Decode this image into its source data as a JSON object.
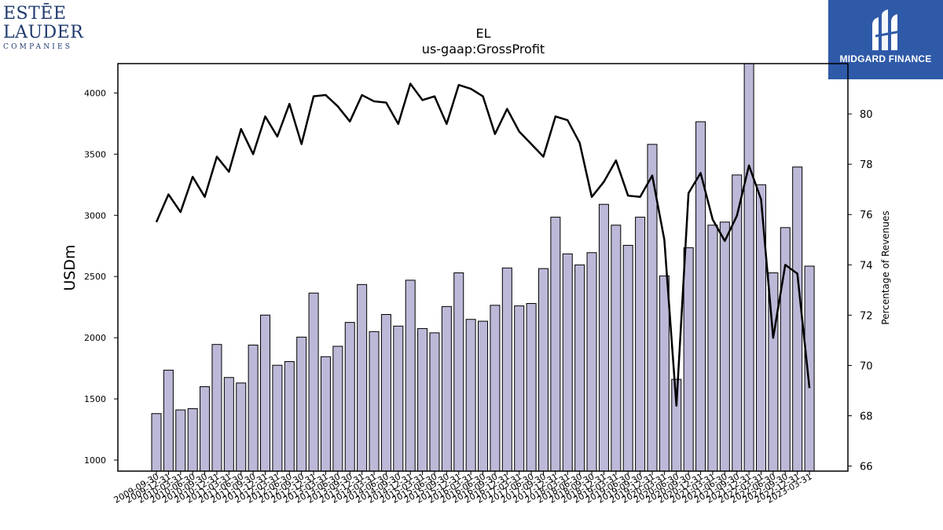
{
  "logos": {
    "left": {
      "line1": "ESTĒE",
      "line2": "LAUDER",
      "line3": "COMPANIES"
    },
    "right": {
      "name": "MIDGARD FINANCE"
    }
  },
  "colors": {
    "bar_fill": "#bcb9d8",
    "bar_stroke": "#000000",
    "line": "#000000",
    "brand_blue": "#2f5aa8"
  },
  "chart_data": {
    "type": "bar",
    "title": "EL",
    "subtitle": "us-gaap:GrossProfit",
    "ylabel": "USDm",
    "y2label": "Percentage of Revenues",
    "ylim": [
      910,
      4240
    ],
    "y2lim": [
      65.8,
      82.0
    ],
    "yticks": [
      1000,
      1500,
      2000,
      2500,
      3000,
      3500,
      4000
    ],
    "y2ticks": [
      66,
      68,
      70,
      72,
      74,
      76,
      78,
      80
    ],
    "categories": [
      "2009-09-30",
      "2009-12-31",
      "2010-03-31",
      "2010-06-30",
      "2010-09-30",
      "2010-12-31",
      "2011-03-31",
      "2011-06-30",
      "2011-09-30",
      "2011-12-31",
      "2012-03-31",
      "2012-06-30",
      "2012-09-30",
      "2012-12-31",
      "2013-03-31",
      "2013-06-30",
      "2013-09-30",
      "2013-12-31",
      "2014-03-31",
      "2014-06-30",
      "2014-09-30",
      "2014-12-31",
      "2015-03-31",
      "2015-06-30",
      "2015-09-30",
      "2015-12-31",
      "2016-03-31",
      "2016-06-30",
      "2016-09-30",
      "2016-12-31",
      "2017-03-31",
      "2017-06-30",
      "2017-09-30",
      "2017-12-31",
      "2018-03-31",
      "2018-06-30",
      "2018-09-30",
      "2018-12-31",
      "2019-03-31",
      "2019-06-30",
      "2019-09-30",
      "2019-12-31",
      "2020-03-31",
      "2020-06-30",
      "2020-09-30",
      "2020-12-31",
      "2021-03-31",
      "2021-06-30",
      "2021-09-30",
      "2021-12-31",
      "2022-03-31",
      "2022-06-30",
      "2022-09-30",
      "2022-12-31",
      "2023-03-31"
    ],
    "tick_labels": [
      "2009-09-30",
      "2009-12-31",
      "2010-03-31",
      "2010-06-30",
      "2010-09-30",
      "2010-12-31",
      "2011-03-31",
      "2011-06-30",
      "2011-09-30",
      "2011-12-31",
      "2012-03-31",
      "2012-06-30",
      "2012-09-30",
      "2012-12-31",
      "2013-03-31",
      "2013-06-30",
      "2013-09-30",
      "2013-12-31",
      "2014-03-31",
      "2014-06-30",
      "2014-09-30",
      "2014-12-31",
      "2015-03-31",
      "2015-06-30",
      "2015-09-30",
      "2015-12-31",
      "2016-03-31",
      "2016-06-30",
      "2016-09-30",
      "2016-12-31",
      "2017-03-31",
      "2017-06-30",
      "2017-09-30",
      "2017-12-31",
      "2018-03-31",
      "2018-06-30",
      "2018-09-30",
      "2018-12-31",
      "2019-03-31",
      "2019-06-30",
      "2019-09-30",
      "2019-12-31",
      "2020-03-31",
      "2020-06-30",
      "2020-09-30",
      "2020-12-31",
      "2021-03-31",
      "2021-06-30",
      "2021-09-30",
      "2021-12-31",
      "2022-03-31",
      "2022-06-30",
      "2022-09-30",
      "2022-12-31",
      "2023-03-31"
    ],
    "series": [
      {
        "kind": "bar",
        "axis": "left",
        "values": [
          1380,
          1735,
          1410,
          1420,
          1600,
          1945,
          1675,
          1630,
          1940,
          2185,
          1775,
          1805,
          2005,
          2365,
          1845,
          1930,
          2125,
          2435,
          2050,
          2190,
          2095,
          2470,
          2075,
          2040,
          2255,
          2530,
          2150,
          2135,
          2265,
          2570,
          2260,
          2280,
          2565,
          2985,
          2685,
          2595,
          2695,
          3090,
          2920,
          2755,
          2985,
          3580,
          2505,
          1660,
          2735,
          3765,
          2920,
          2945,
          3330,
          4260,
          3250,
          2530,
          2900,
          3395,
          2585
        ]
      },
      {
        "kind": "line",
        "axis": "right",
        "values": [
          75.7,
          76.8,
          76.1,
          77.5,
          76.7,
          78.3,
          77.7,
          79.4,
          78.4,
          79.9,
          79.1,
          80.4,
          78.8,
          80.7,
          80.75,
          80.3,
          79.7,
          80.75,
          80.5,
          80.45,
          79.6,
          81.2,
          80.55,
          80.7,
          79.6,
          81.15,
          81.0,
          80.7,
          79.2,
          80.2,
          79.3,
          78.8,
          78.3,
          79.9,
          79.75,
          78.85,
          76.7,
          77.3,
          78.15,
          76.75,
          76.7,
          77.55,
          75.0,
          68.4,
          76.85,
          77.65,
          75.8,
          74.95,
          75.95,
          77.95,
          76.6,
          71.1,
          74.0,
          73.65,
          69.1
        ]
      }
    ],
    "grid": false,
    "legend": "none"
  }
}
